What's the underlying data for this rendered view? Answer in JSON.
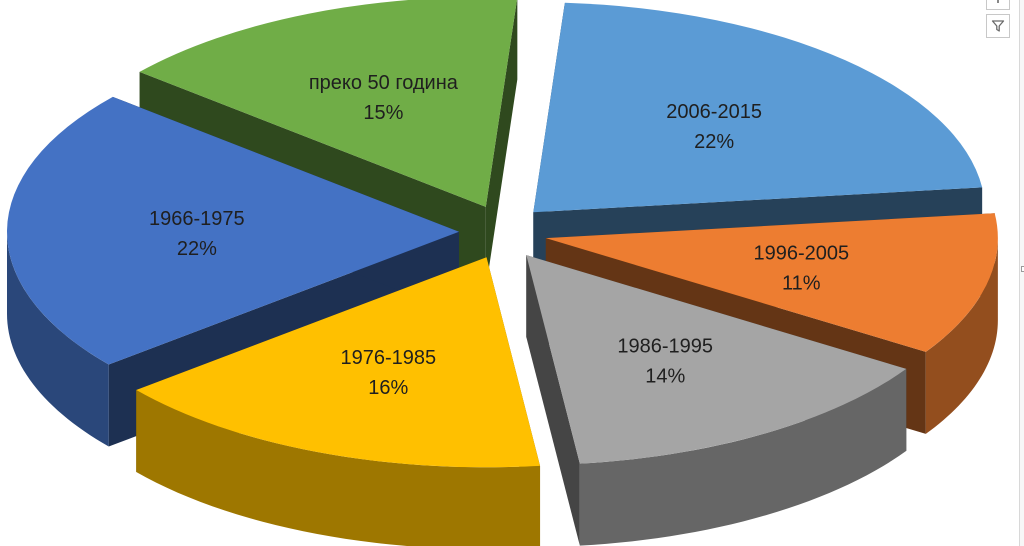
{
  "chart_data": {
    "type": "pie",
    "style": "3d-exploded",
    "slices": [
      {
        "label": "2006-2015",
        "percent": "22%",
        "value": 22,
        "color": "#5B9BD5"
      },
      {
        "label": "1996-2005",
        "percent": "11%",
        "value": 11,
        "color": "#ED7D31"
      },
      {
        "label": "1986-1995",
        "percent": "14%",
        "value": 14,
        "color": "#A5A5A5"
      },
      {
        "label": "1976-1985",
        "percent": "16%",
        "value": 16,
        "color": "#FFC000"
      },
      {
        "label": "1966-1975",
        "percent": "22%",
        "value": 22,
        "color": "#4472C4"
      },
      {
        "label": "преко 50 година",
        "percent": "15%",
        "value": 15,
        "color": "#70AD47"
      }
    ],
    "legend": "none",
    "data_labels": "label and percent on slice"
  },
  "toolbar": {
    "filter_icon": "filter-icon",
    "top_icon": "chart-elements-icon"
  }
}
